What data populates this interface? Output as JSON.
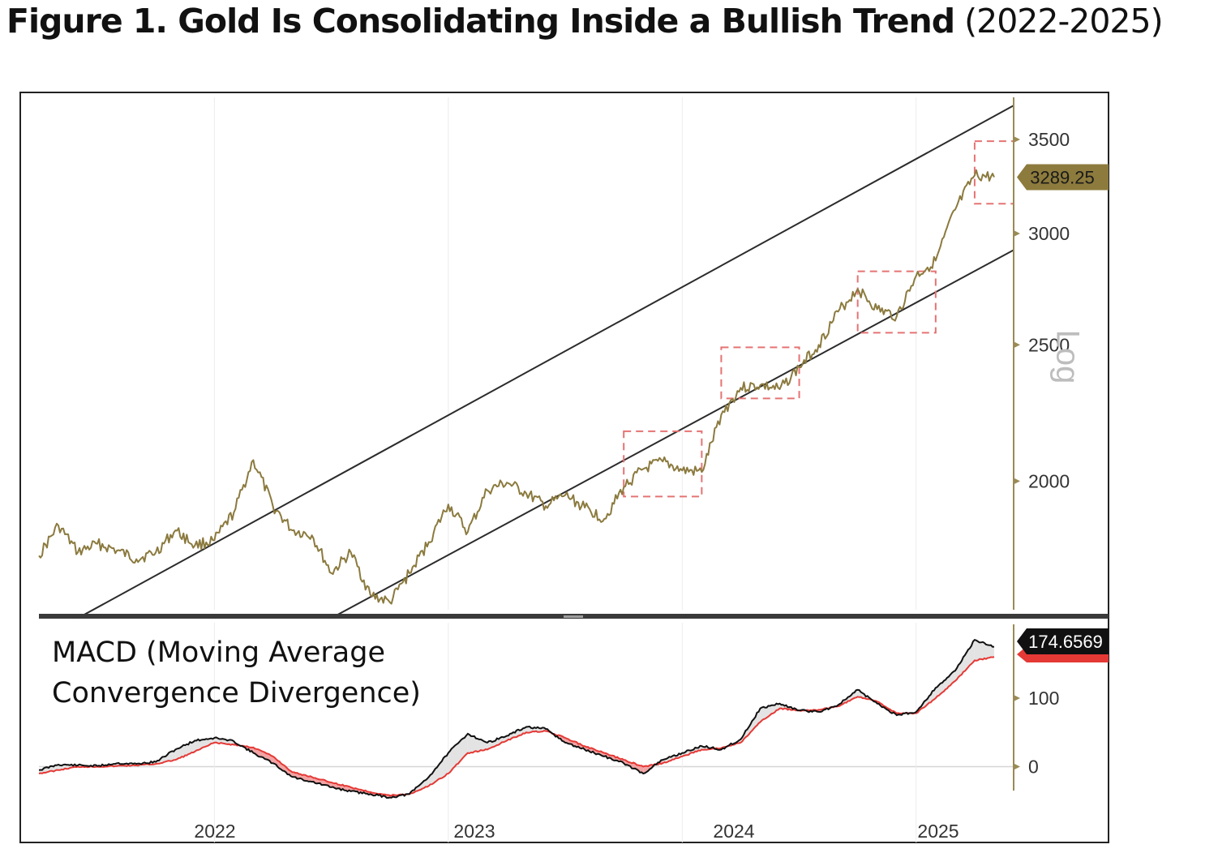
{
  "figure": {
    "title_bold": "Figure 1. Gold Is Consolidating Inside a Bullish Trend",
    "title_rest": " (2022-2025)"
  },
  "chart_data": [
    {
      "type": "line",
      "scale": "log",
      "axis_label": "Log",
      "y_ticks": [
        2000,
        2500,
        3000,
        3500
      ],
      "ylim": [
        1620,
        3750
      ],
      "last_value_label": "3289.25",
      "x_range": [
        "2021-04",
        "2025-06"
      ],
      "series": [
        {
          "color": "#8b7a3e",
          "points": [
            [
              "2021-04",
              1770
            ],
            [
              "2021-05",
              1860
            ],
            [
              "2021-06",
              1780
            ],
            [
              "2021-07",
              1805
            ],
            [
              "2021-08",
              1785
            ],
            [
              "2021-09",
              1760
            ],
            [
              "2021-10",
              1780
            ],
            [
              "2021-11",
              1845
            ],
            [
              "2021-12",
              1800
            ],
            [
              "2022-01",
              1815
            ],
            [
              "2022-02",
              1900
            ],
            [
              "2022-03",
              2070
            ],
            [
              "2022-04",
              1920
            ],
            [
              "2022-05",
              1845
            ],
            [
              "2022-06",
              1830
            ],
            [
              "2022-07",
              1720
            ],
            [
              "2022-08",
              1780
            ],
            [
              "2022-09",
              1660
            ],
            [
              "2022-10",
              1640
            ],
            [
              "2022-11",
              1720
            ],
            [
              "2022-12",
              1810
            ],
            [
              "2023-01",
              1925
            ],
            [
              "2023-02",
              1840
            ],
            [
              "2023-03",
              1970
            ],
            [
              "2023-04",
              1995
            ],
            [
              "2023-05",
              1960
            ],
            [
              "2023-06",
              1920
            ],
            [
              "2023-07",
              1955
            ],
            [
              "2023-08",
              1915
            ],
            [
              "2023-09",
              1880
            ],
            [
              "2023-10",
              1980
            ],
            [
              "2023-11",
              2040
            ],
            [
              "2023-12",
              2065
            ],
            [
              "2024-01",
              2035
            ],
            [
              "2024-02",
              2030
            ],
            [
              "2024-03",
              2230
            ],
            [
              "2024-04",
              2330
            ],
            [
              "2024-05",
              2340
            ],
            [
              "2024-06",
              2325
            ],
            [
              "2024-07",
              2410
            ],
            [
              "2024-08",
              2500
            ],
            [
              "2024-09",
              2640
            ],
            [
              "2024-10",
              2740
            ],
            [
              "2024-11",
              2650
            ],
            [
              "2024-12",
              2620
            ],
            [
              "2025-01",
              2800
            ],
            [
              "2025-02",
              2870
            ],
            [
              "2025-03",
              3120
            ],
            [
              "2025-04",
              3300
            ],
            [
              "2025-05",
              3290
            ]
          ]
        }
      ],
      "trend_channel": {
        "upper": [
          [
            "2021-06",
            1598
          ],
          [
            "2025-06",
            3700
          ]
        ],
        "lower": [
          [
            "2022-07",
            1598
          ],
          [
            "2025-06",
            2920
          ]
        ]
      },
      "consolidation_boxes": [
        {
          "x": [
            "2023-10",
            "2024-02"
          ],
          "y": [
            1950,
            2170
          ]
        },
        {
          "x": [
            "2024-03",
            "2024-07"
          ],
          "y": [
            2290,
            2490
          ]
        },
        {
          "x": [
            "2024-10",
            "2025-02"
          ],
          "y": [
            2550,
            2820
          ]
        },
        {
          "x": [
            "2025-04",
            "2025-06"
          ],
          "y": [
            3150,
            3490
          ]
        }
      ]
    },
    {
      "type": "line",
      "title": "MACD (Moving Average Convergence Divergence)",
      "title_lines": [
        "MACD (Moving Average",
        "Convergence Divergence)"
      ],
      "y_ticks": [
        0,
        100
      ],
      "ylim": [
        -55,
        210
      ],
      "last_value_label": "174.6569",
      "xlabels": [
        "2022",
        "2023",
        "2024",
        "2025"
      ],
      "series": [
        {
          "color": "#111111",
          "points": [
            [
              "2021-04",
              -5
            ],
            [
              "2021-05",
              3
            ],
            [
              "2021-06",
              2
            ],
            [
              "2021-07",
              1
            ],
            [
              "2021-08",
              5
            ],
            [
              "2021-09",
              4
            ],
            [
              "2021-10",
              7
            ],
            [
              "2021-11",
              25
            ],
            [
              "2021-12",
              38
            ],
            [
              "2022-01",
              42
            ],
            [
              "2022-02",
              37
            ],
            [
              "2022-03",
              20
            ],
            [
              "2022-04",
              5
            ],
            [
              "2022-05",
              -15
            ],
            [
              "2022-06",
              -22
            ],
            [
              "2022-07",
              -30
            ],
            [
              "2022-08",
              -36
            ],
            [
              "2022-09",
              -40
            ],
            [
              "2022-10",
              -45
            ],
            [
              "2022-11",
              -40
            ],
            [
              "2022-12",
              -15
            ],
            [
              "2023-01",
              20
            ],
            [
              "2023-02",
              48
            ],
            [
              "2023-03",
              35
            ],
            [
              "2023-04",
              45
            ],
            [
              "2023-05",
              58
            ],
            [
              "2023-06",
              55
            ],
            [
              "2023-07",
              35
            ],
            [
              "2023-08",
              25
            ],
            [
              "2023-09",
              15
            ],
            [
              "2023-10",
              5
            ],
            [
              "2023-11",
              -10
            ],
            [
              "2023-12",
              10
            ],
            [
              "2024-01",
              20
            ],
            [
              "2024-02",
              30
            ],
            [
              "2024-03",
              25
            ],
            [
              "2024-04",
              40
            ],
            [
              "2024-05",
              85
            ],
            [
              "2024-06",
              92
            ],
            [
              "2024-07",
              82
            ],
            [
              "2024-08",
              80
            ],
            [
              "2024-09",
              90
            ],
            [
              "2024-10",
              112
            ],
            [
              "2024-11",
              92
            ],
            [
              "2024-12",
              75
            ],
            [
              "2025-01",
              80
            ],
            [
              "2025-02",
              115
            ],
            [
              "2025-03",
              140
            ],
            [
              "2025-04",
              185
            ],
            [
              "2025-05",
              175
            ]
          ]
        },
        {
          "color": "#e53935",
          "points": [
            [
              "2021-04",
              -10
            ],
            [
              "2021-05",
              -5
            ],
            [
              "2021-06",
              0
            ],
            [
              "2021-07",
              0
            ],
            [
              "2021-08",
              1
            ],
            [
              "2021-09",
              2
            ],
            [
              "2021-10",
              4
            ],
            [
              "2021-11",
              10
            ],
            [
              "2021-12",
              22
            ],
            [
              "2022-01",
              35
            ],
            [
              "2022-02",
              32
            ],
            [
              "2022-03",
              28
            ],
            [
              "2022-04",
              15
            ],
            [
              "2022-05",
              -8
            ],
            [
              "2022-06",
              -15
            ],
            [
              "2022-07",
              -23
            ],
            [
              "2022-08",
              -30
            ],
            [
              "2022-09",
              -37
            ],
            [
              "2022-10",
              -42
            ],
            [
              "2022-11",
              -40
            ],
            [
              "2022-12",
              -28
            ],
            [
              "2023-01",
              -10
            ],
            [
              "2023-02",
              20
            ],
            [
              "2023-03",
              25
            ],
            [
              "2023-04",
              38
            ],
            [
              "2023-05",
              50
            ],
            [
              "2023-06",
              52
            ],
            [
              "2023-07",
              42
            ],
            [
              "2023-08",
              30
            ],
            [
              "2023-09",
              20
            ],
            [
              "2023-10",
              10
            ],
            [
              "2023-11",
              0
            ],
            [
              "2023-12",
              5
            ],
            [
              "2024-01",
              15
            ],
            [
              "2024-02",
              25
            ],
            [
              "2024-03",
              27
            ],
            [
              "2024-04",
              35
            ],
            [
              "2024-05",
              65
            ],
            [
              "2024-06",
              85
            ],
            [
              "2024-07",
              82
            ],
            [
              "2024-08",
              83
            ],
            [
              "2024-09",
              88
            ],
            [
              "2024-10",
              102
            ],
            [
              "2024-11",
              95
            ],
            [
              "2024-12",
              78
            ],
            [
              "2025-01",
              78
            ],
            [
              "2025-02",
              100
            ],
            [
              "2025-03",
              125
            ],
            [
              "2025-04",
              155
            ],
            [
              "2025-05",
              160
            ]
          ]
        }
      ]
    }
  ]
}
